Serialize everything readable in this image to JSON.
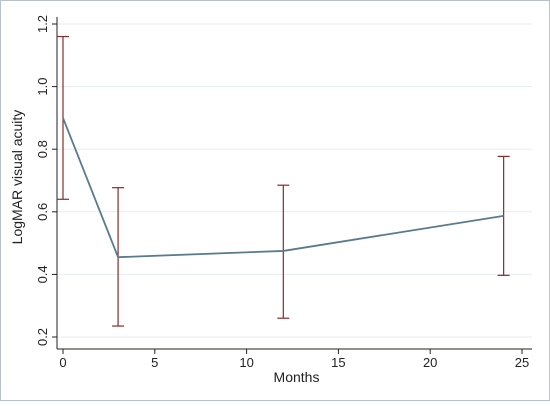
{
  "chart_data": {
    "type": "line",
    "title": "",
    "xlabel": "Months",
    "ylabel": "LogMAR visual acuity",
    "xlim": [
      0,
      25
    ],
    "ylim": [
      0.2,
      1.2
    ],
    "x_ticks": [
      0,
      5,
      10,
      15,
      20,
      25
    ],
    "x_tick_labels": [
      "0",
      "5",
      "10",
      "15",
      "20",
      "25"
    ],
    "y_ticks": [
      0.2,
      0.4,
      0.6,
      0.8,
      1.0,
      1.2
    ],
    "y_tick_labels": [
      "0.2",
      "0.4",
      "0.6",
      "0.8",
      "1.0",
      "1.2"
    ],
    "grid": true,
    "legend": "none",
    "series": [
      {
        "x": [
          0,
          3,
          12,
          24
        ],
        "y": [
          0.9,
          0.455,
          0.475,
          0.587
        ],
        "error_low": [
          0.64,
          0.235,
          0.26,
          0.397
        ],
        "error_high": [
          1.16,
          0.677,
          0.685,
          0.777
        ]
      }
    ],
    "colors": {
      "line": "#587b8d",
      "errorbar": "#8b2a2a",
      "grid": "#e6edf1",
      "axis": "#222222"
    }
  }
}
